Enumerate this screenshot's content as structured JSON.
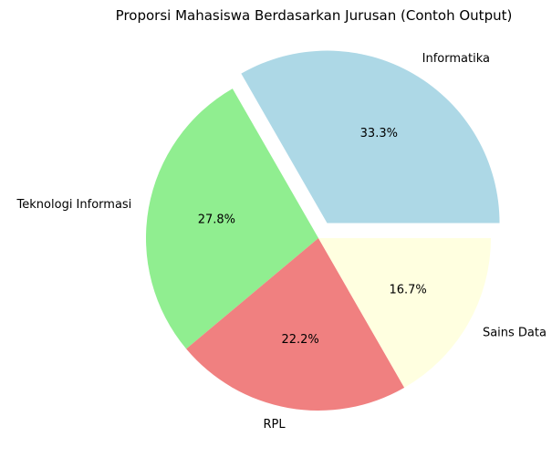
{
  "chart_data": {
    "type": "pie",
    "title": "Proporsi Mahasiswa Berdasarkan Jurusan (Contoh Output)",
    "start_angle_deg": 0,
    "direction": "counterclockwise",
    "slices": [
      {
        "name": "Informatika",
        "value": 33.3,
        "label": "33.3%",
        "color": "#add8e6",
        "exploded": true
      },
      {
        "name": "Teknologi Informasi",
        "value": 27.8,
        "label": "27.8%",
        "color": "#90ee90",
        "exploded": false
      },
      {
        "name": "RPL",
        "value": 22.2,
        "label": "22.2%",
        "color": "#f08080",
        "exploded": false
      },
      {
        "name": "Sains Data",
        "value": 16.7,
        "label": "16.7%",
        "color": "#ffffe0",
        "exploded": false
      }
    ]
  }
}
